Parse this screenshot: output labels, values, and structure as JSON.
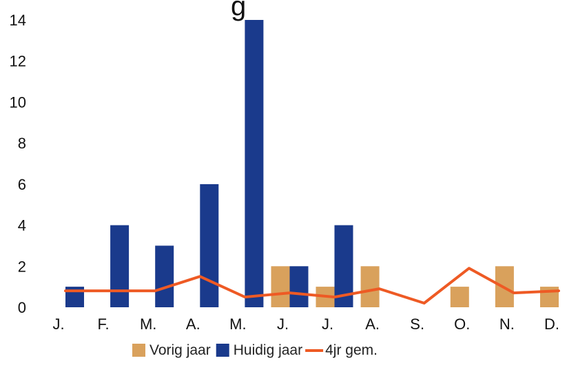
{
  "chart_data": {
    "type": "bar",
    "title_fragment": "g",
    "categories": [
      "J.",
      "F.",
      "M.",
      "A.",
      "M.",
      "J.",
      "J.",
      "A.",
      "S.",
      "O.",
      "N.",
      "D."
    ],
    "series": [
      {
        "name": "Vorig jaar",
        "kind": "bar",
        "color": "#d9a15c",
        "values": [
          0,
          0,
          0,
          0,
          0,
          2,
          1,
          2,
          0,
          1,
          2,
          1
        ]
      },
      {
        "name": "Huidig jaar",
        "kind": "bar",
        "color": "#1a3a8c",
        "values": [
          1,
          4,
          3,
          6,
          14,
          2,
          4,
          0,
          0,
          0,
          0,
          0
        ]
      },
      {
        "name": "4jr gem.",
        "kind": "line",
        "color": "#ee5a24",
        "values": [
          0.8,
          0.8,
          0.8,
          1.5,
          0.5,
          0.7,
          0.5,
          0.9,
          0.2,
          1.9,
          0.7,
          0.8
        ]
      }
    ],
    "yticks": [
      "0",
      "2",
      "4",
      "6",
      "8",
      "10",
      "12",
      "14"
    ],
    "ylim": [
      0,
      14
    ],
    "grid": false,
    "legend_position": "bottom"
  }
}
